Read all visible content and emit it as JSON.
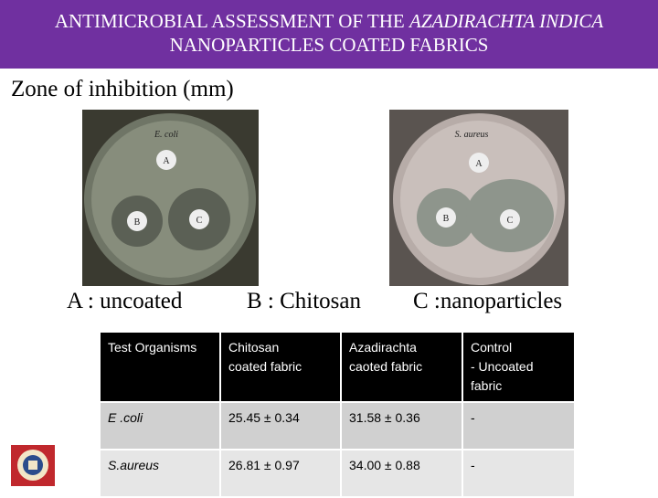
{
  "header": {
    "title_line1": "ANTIMICROBIAL ASSESSMENT OF THE",
    "title_line1_italic": "AZADIRACHTA INDICA",
    "title_line2": "NANOPARTICLES  COATED FABRICS"
  },
  "subtitle": "Zone of inhibition (mm)",
  "images": [
    {
      "organism": "E. coli",
      "disks": [
        "A",
        "B",
        "C"
      ]
    },
    {
      "organism": "S. aureus",
      "disks": [
        "A",
        "B",
        "C"
      ]
    }
  ],
  "legend": [
    "A : uncoated",
    "B :  Chitosan",
    "C :nanoparticles"
  ],
  "table": {
    "header": [
      "Test Organisms",
      "Chitosan\ncoated fabric",
      "Azadirachta\ncaoted fabric",
      "Control\n- Uncoated\nfabric"
    ],
    "rows": [
      [
        "E .coli",
        "25.45 ± 0.34",
        "31.58 ± 0.36",
        "-"
      ],
      [
        "S.aureus",
        "26.81 ± 0.97",
        "34.00 ± 0.88",
        "-"
      ]
    ]
  }
}
